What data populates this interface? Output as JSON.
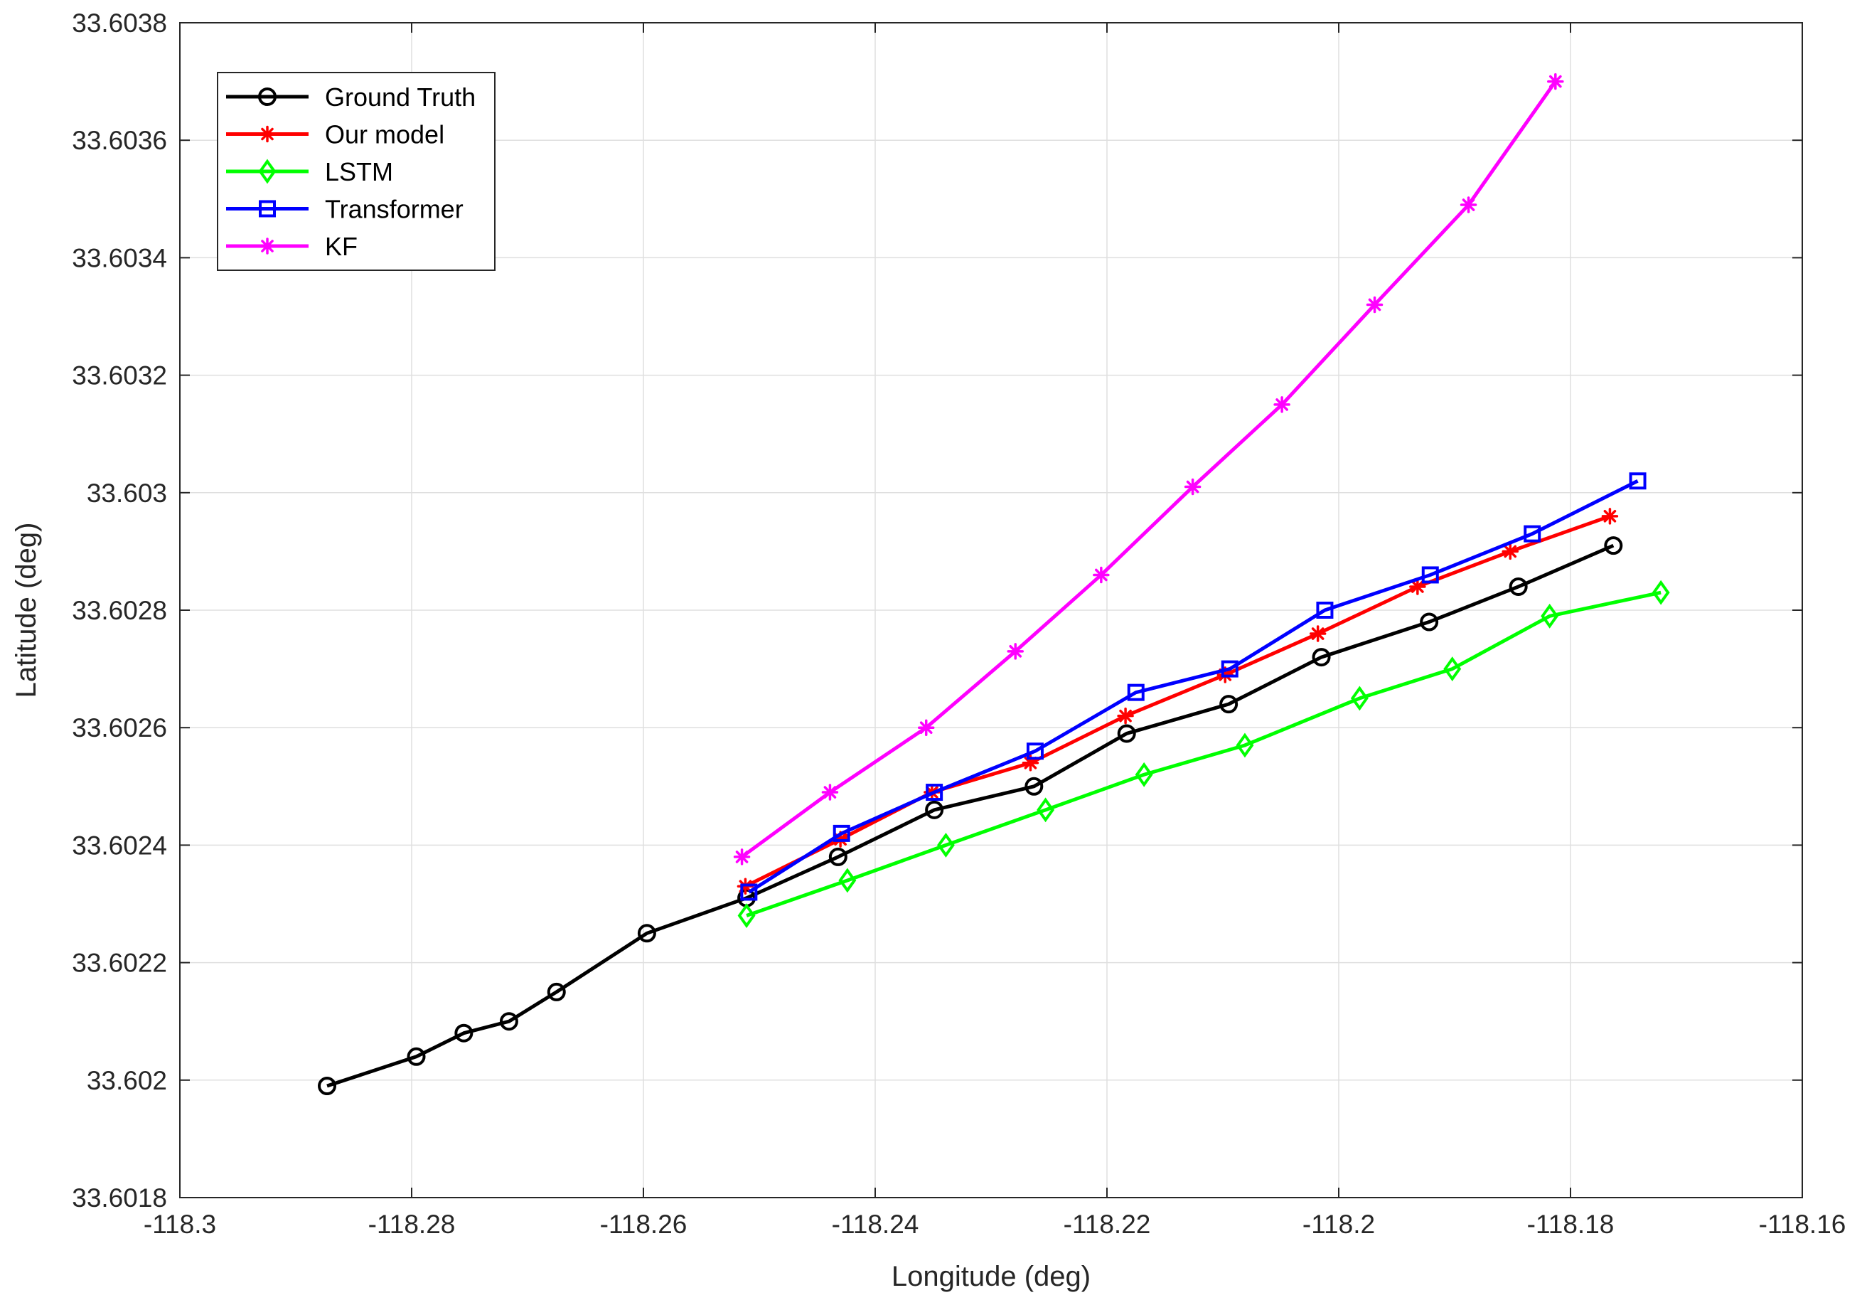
{
  "chart_data": {
    "type": "line",
    "title": "",
    "xlabel": "Longitude (deg)",
    "ylabel": "Latitude (deg)",
    "xlim": [
      -118.3,
      -118.16
    ],
    "ylim": [
      33.6018,
      33.6038
    ],
    "grid": true,
    "legend_position": "top-left",
    "x_ticks": [
      -118.3,
      -118.28,
      -118.26,
      -118.24,
      -118.22,
      -118.2,
      -118.18,
      -118.16
    ],
    "x_tick_labels": [
      "-118.3",
      "-118.28",
      "-118.26",
      "-118.24",
      "-118.22",
      "-118.2",
      "-118.18",
      "-118.16"
    ],
    "y_ticks": [
      33.6018,
      33.602,
      33.6022,
      33.6024,
      33.6026,
      33.6028,
      33.603,
      33.6032,
      33.6034,
      33.6036,
      33.6038
    ],
    "y_tick_labels": [
      "33.6018",
      "33.602",
      "33.6022",
      "33.6024",
      "33.6026",
      "33.6028",
      "33.603",
      "33.6032",
      "33.6034",
      "33.6036",
      "33.6038"
    ],
    "series": [
      {
        "name": "Ground Truth",
        "color": "#000000",
        "marker": "circle",
        "x": [
          -118.2873,
          -118.2796,
          -118.2755,
          -118.2716,
          -118.2675,
          -118.2597,
          -118.2511,
          -118.2432,
          -118.2349,
          -118.2263,
          -118.2183,
          -118.2095,
          -118.2015,
          -118.1922,
          -118.1845,
          -118.1763
        ],
        "y": [
          33.60199,
          33.60204,
          33.60208,
          33.6021,
          33.60215,
          33.60225,
          33.60231,
          33.60238,
          33.60246,
          33.6025,
          33.60259,
          33.60264,
          33.60272,
          33.60278,
          33.60284,
          33.60291
        ]
      },
      {
        "name": "Our model",
        "color": "#ff0000",
        "marker": "asterisk",
        "x": [
          -118.2512,
          -118.243,
          -118.2351,
          -118.2266,
          -118.2184,
          -118.2098,
          -118.2018,
          -118.1932,
          -118.1852,
          -118.1766
        ],
        "y": [
          33.60233,
          33.60241,
          33.60249,
          33.60254,
          33.60262,
          33.60269,
          33.60276,
          33.60284,
          33.6029,
          33.60296
        ]
      },
      {
        "name": "LSTM",
        "color": "#00ff00",
        "marker": "diamond",
        "x": [
          -118.2511,
          -118.2424,
          -118.2339,
          -118.2253,
          -118.2168,
          -118.2081,
          -118.1982,
          -118.1902,
          -118.1818,
          -118.1722
        ],
        "y": [
          33.60228,
          33.60234,
          33.6024,
          33.60246,
          33.60252,
          33.60257,
          33.60265,
          33.6027,
          33.60279,
          33.60283
        ]
      },
      {
        "name": "Transformer",
        "color": "#0000ff",
        "marker": "square",
        "x": [
          -118.2509,
          -118.2429,
          -118.2349,
          -118.2262,
          -118.2175,
          -118.2094,
          -118.2012,
          -118.1921,
          -118.1833,
          -118.1742
        ],
        "y": [
          33.60232,
          33.60242,
          33.60249,
          33.60256,
          33.60266,
          33.6027,
          33.6028,
          33.60286,
          33.60293,
          33.60302
        ]
      },
      {
        "name": "KF",
        "color": "#ff00ff",
        "marker": "asterisk",
        "x": [
          -118.2515,
          -118.2439,
          -118.2356,
          -118.2279,
          -118.2205,
          -118.2126,
          -118.2049,
          -118.1969,
          -118.1888,
          -118.1813
        ],
        "y": [
          33.60238,
          33.60249,
          33.6026,
          33.60273,
          33.60286,
          33.60301,
          33.60315,
          33.60332,
          33.60349,
          33.6037
        ]
      }
    ]
  }
}
